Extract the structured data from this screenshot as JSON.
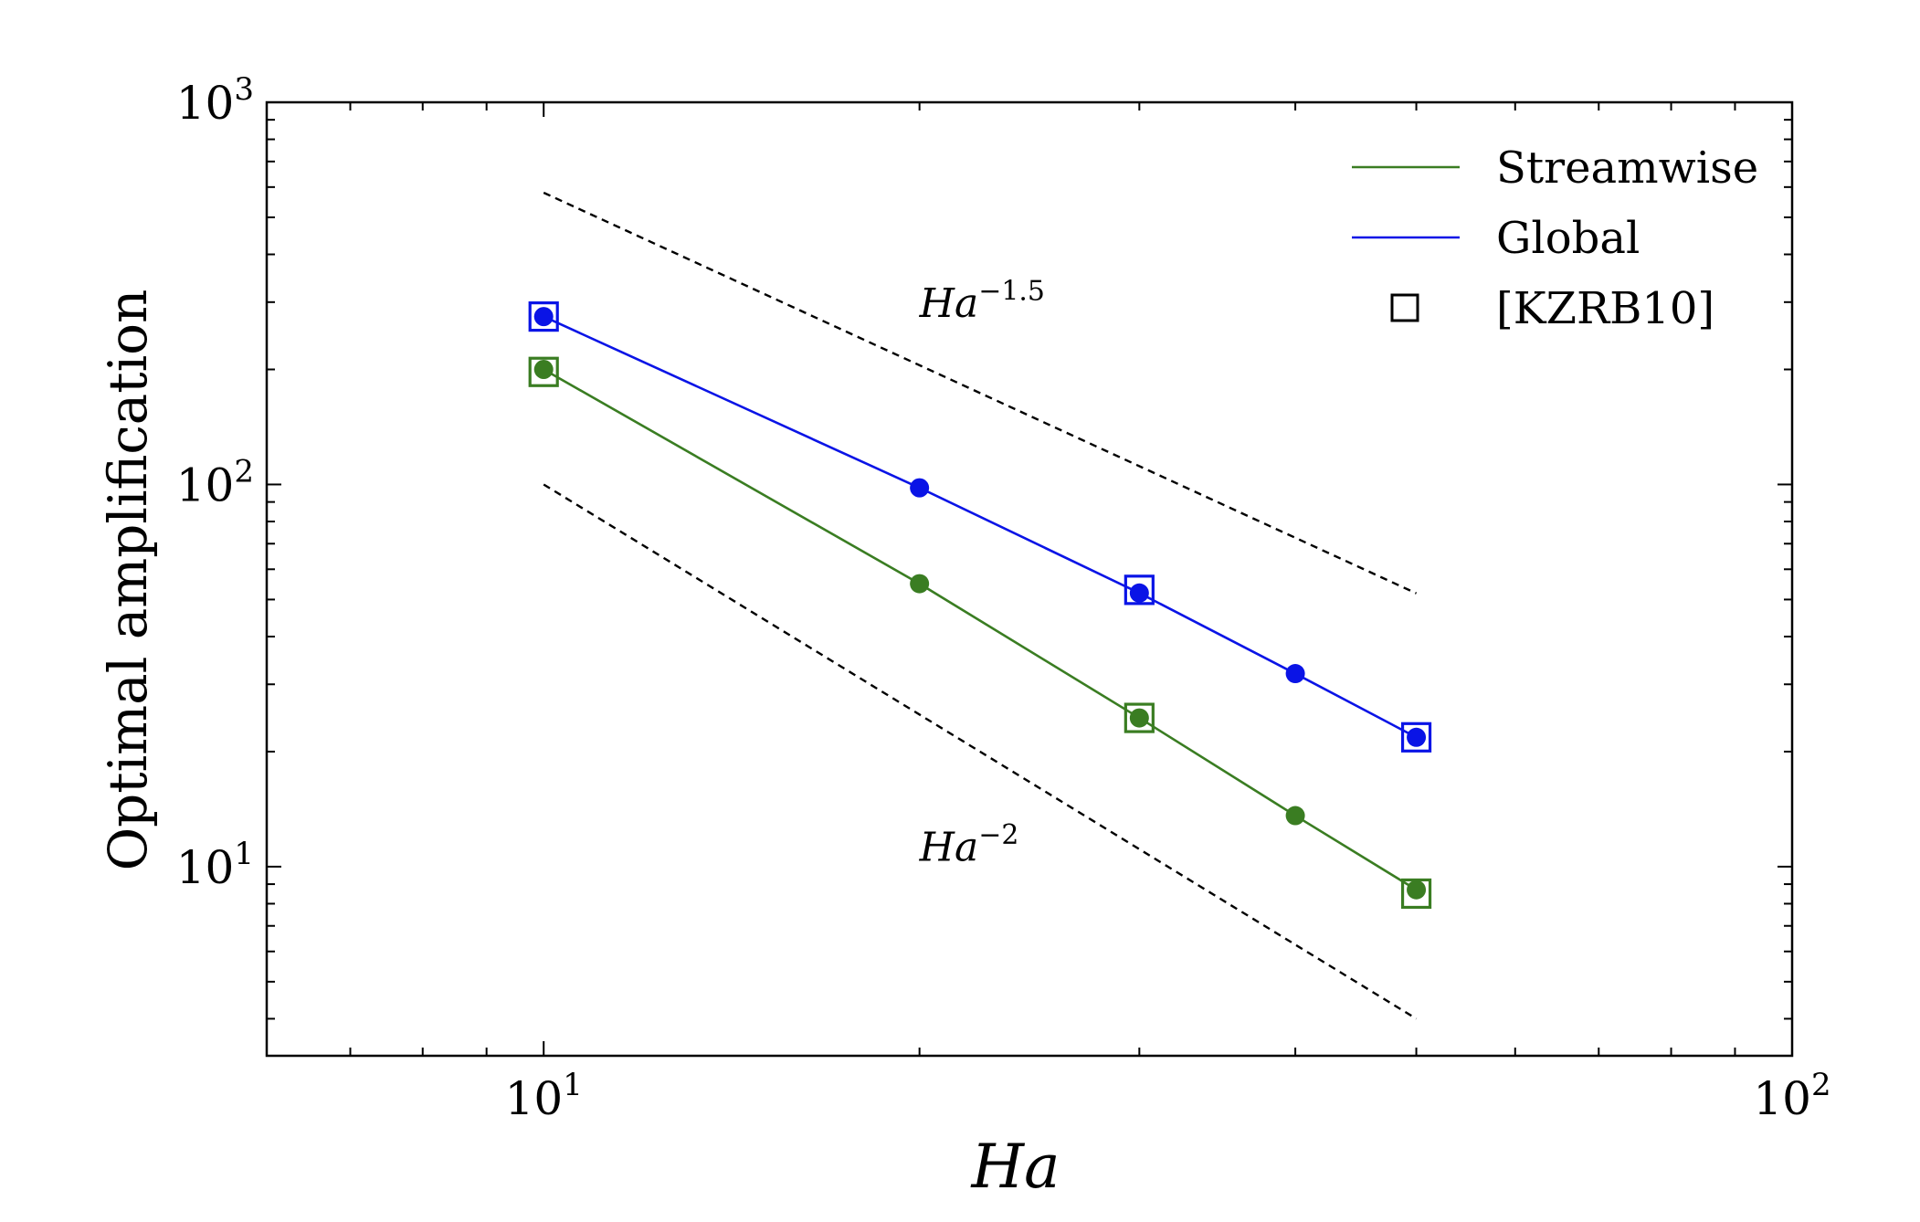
{
  "chart_data": {
    "type": "line",
    "xscale": "log",
    "yscale": "log",
    "xlim": [
      6,
      100
    ],
    "ylim": [
      3.2,
      1000
    ],
    "xlabel": "Ha",
    "ylabel": "Optimal amplification",
    "x_ticks": [
      {
        "value": 10,
        "base": "10",
        "exp": "1"
      },
      {
        "value": 100,
        "base": "10",
        "exp": "2"
      }
    ],
    "y_ticks": [
      {
        "value": 10,
        "base": "10",
        "exp": "1"
      },
      {
        "value": 100,
        "base": "10",
        "exp": "2"
      },
      {
        "value": 1000,
        "base": "10",
        "exp": "3"
      }
    ],
    "series": [
      {
        "name": "Streamwise",
        "color": "#3a7d22",
        "x": [
          10,
          20,
          30,
          40,
          50
        ],
        "y": [
          200,
          55,
          24.5,
          13.6,
          8.7
        ],
        "kzrb10_x": [
          10,
          30,
          50
        ],
        "kzrb10_y": [
          197,
          24.5,
          8.5
        ]
      },
      {
        "name": "Global",
        "color": "#0a14e6",
        "x": [
          10,
          20,
          30,
          40,
          50
        ],
        "y": [
          275,
          98,
          52,
          32,
          21.8
        ],
        "kzrb10_x": [
          10,
          30,
          50
        ],
        "kzrb10_y": [
          275,
          53,
          21.8
        ]
      }
    ],
    "reference_lines": [
      {
        "base": "Ha",
        "exp": "−1.5",
        "x": [
          10,
          50
        ],
        "y": [
          580,
          51.9
        ],
        "label_x": 20,
        "label_y": 300
      },
      {
        "base": "Ha",
        "exp": "−2",
        "x": [
          10,
          50
        ],
        "y": [
          100,
          4.0
        ],
        "label_x": 20,
        "label_y": 11.3
      }
    ],
    "legend": {
      "position": "top-right",
      "entries": [
        "Streamwise",
        "Global",
        "[KZRB10]"
      ]
    },
    "grid": false
  }
}
